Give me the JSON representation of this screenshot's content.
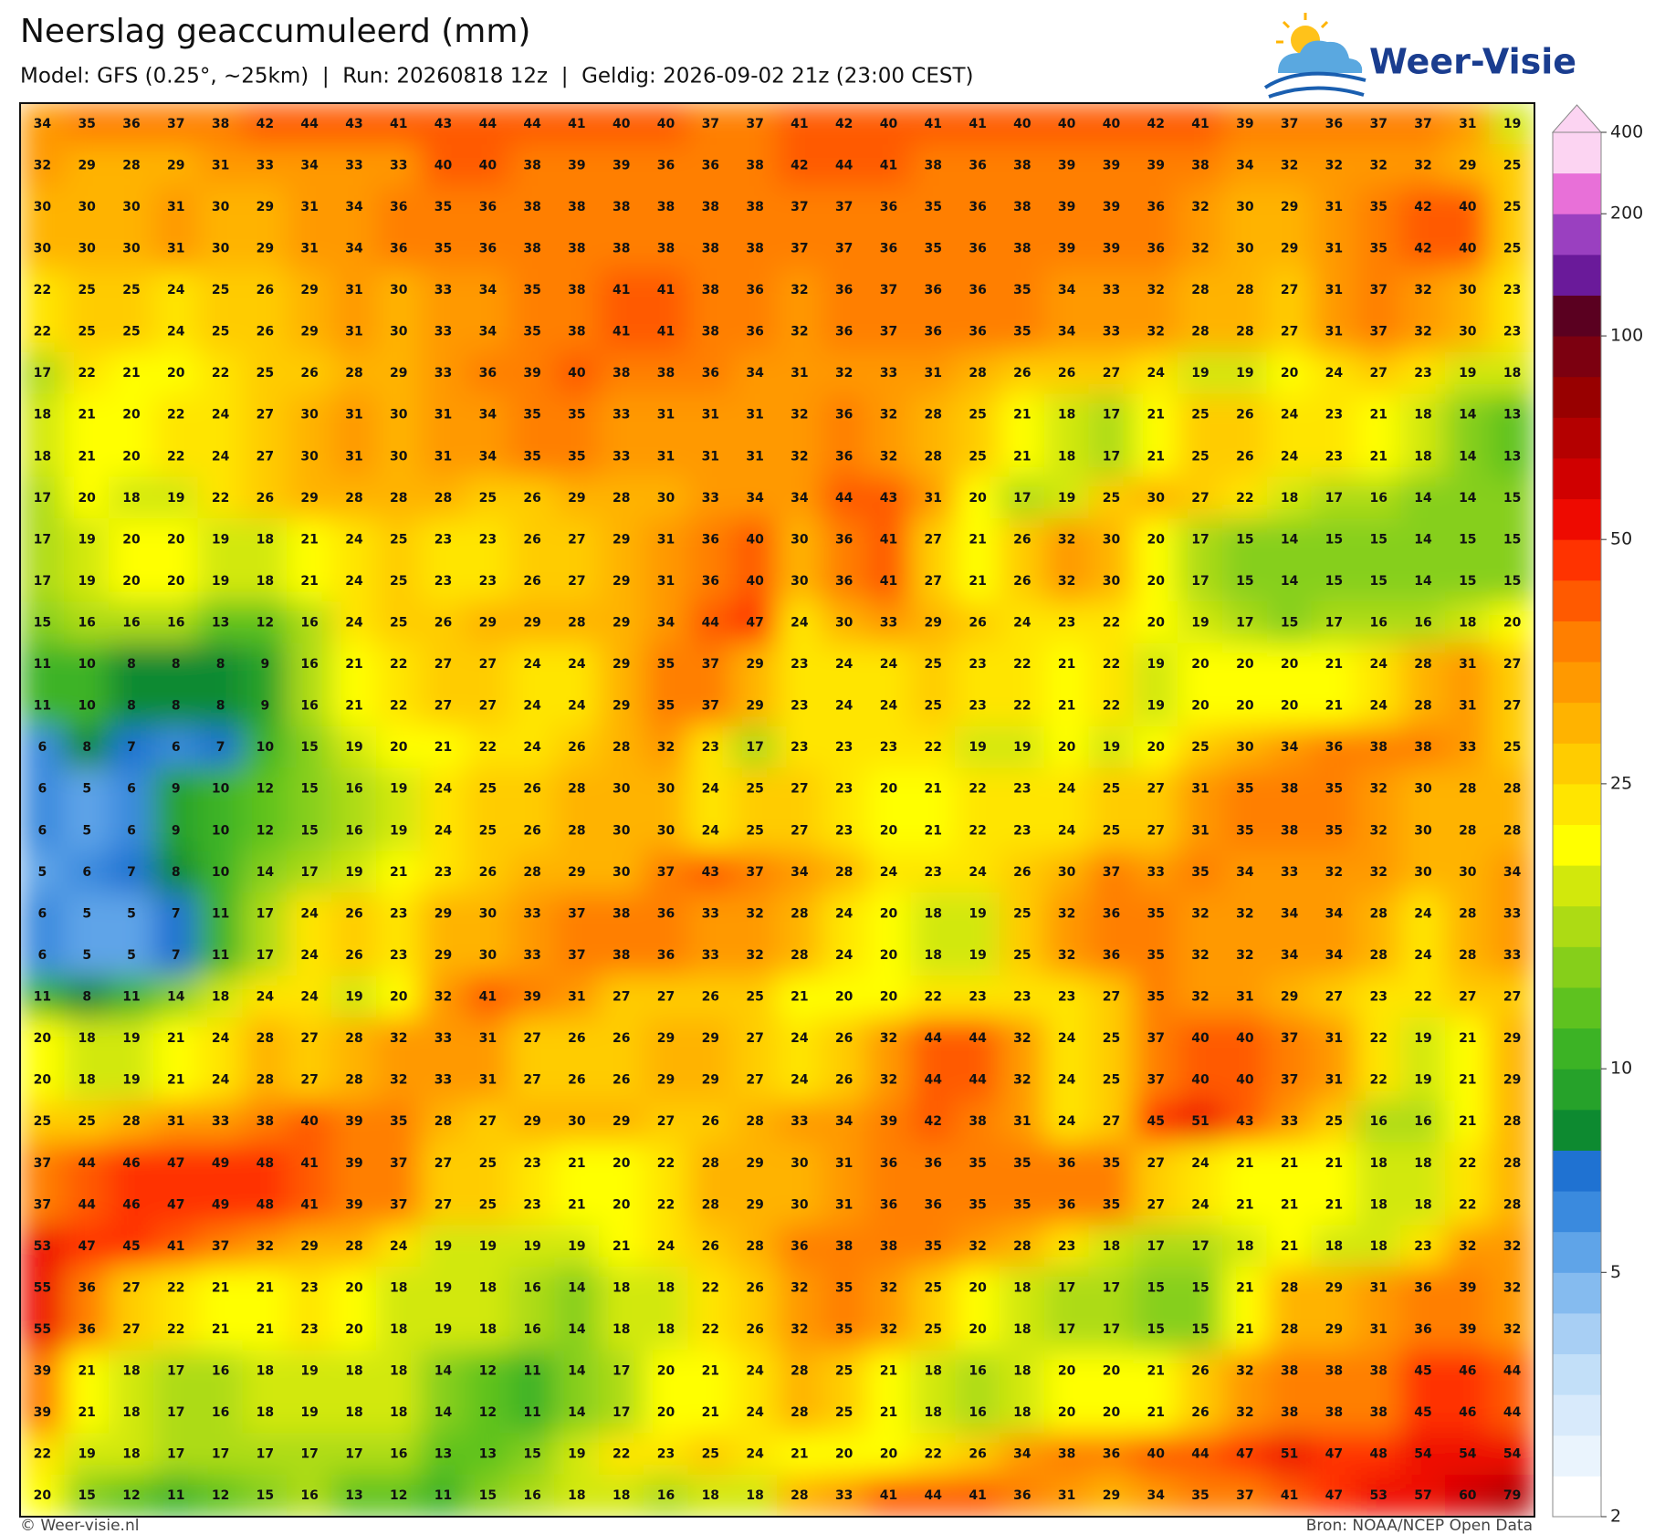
{
  "title": "Neerslag geaccumuleerd (mm)",
  "subtitle": "Model: GFS (0.25°, ~25km)  |  Run: 20260818 12z  |  Geldig: 2026-09-02 21z (23:00 CEST)",
  "logo_text": "Weer-Visie",
  "footer_left": "© Weer-visie.nl",
  "footer_right": "Bron: NOAA/NCEP Open Data",
  "chart_data": {
    "type": "heatmap",
    "grid": [
      [
        34,
        35,
        36,
        37,
        38,
        42,
        44,
        43,
        41,
        43,
        44,
        44,
        41,
        40,
        40,
        37,
        37,
        41,
        42,
        40,
        41,
        41,
        40,
        40,
        40,
        42,
        41,
        39,
        37,
        36,
        37,
        37,
        31,
        19
      ],
      [
        32,
        29,
        28,
        29,
        31,
        33,
        34,
        33,
        33,
        40,
        40,
        38,
        39,
        39,
        36,
        36,
        38,
        42,
        44,
        41,
        38,
        36,
        38,
        39,
        39,
        39,
        38,
        34,
        32,
        32,
        32,
        32,
        29,
        25
      ],
      [
        30,
        30,
        30,
        31,
        30,
        29,
        31,
        34,
        36,
        35,
        36,
        38,
        38,
        38,
        38,
        38,
        38,
        37,
        37,
        36,
        35,
        36,
        38,
        39,
        39,
        36,
        32,
        30,
        29,
        31,
        35,
        42,
        40,
        25
      ],
      [
        30,
        30,
        30,
        31,
        30,
        29,
        31,
        34,
        36,
        35,
        36,
        38,
        38,
        38,
        38,
        38,
        38,
        37,
        37,
        36,
        35,
        36,
        38,
        39,
        39,
        36,
        32,
        30,
        29,
        31,
        35,
        42,
        40,
        25
      ],
      [
        22,
        25,
        25,
        24,
        25,
        26,
        29,
        31,
        30,
        33,
        34,
        35,
        38,
        41,
        41,
        38,
        36,
        32,
        36,
        37,
        36,
        36,
        35,
        34,
        33,
        32,
        28,
        28,
        27,
        31,
        37,
        32,
        30,
        23
      ],
      [
        22,
        25,
        25,
        24,
        25,
        26,
        29,
        31,
        30,
        33,
        34,
        35,
        38,
        41,
        41,
        38,
        36,
        32,
        36,
        37,
        36,
        36,
        35,
        34,
        33,
        32,
        28,
        28,
        27,
        31,
        37,
        32,
        30,
        23
      ],
      [
        17,
        22,
        21,
        20,
        22,
        25,
        26,
        28,
        29,
        33,
        36,
        39,
        40,
        38,
        38,
        36,
        34,
        31,
        32,
        33,
        31,
        28,
        26,
        26,
        27,
        24,
        19,
        19,
        20,
        24,
        27,
        23,
        19,
        18
      ],
      [
        18,
        21,
        20,
        22,
        24,
        27,
        30,
        31,
        30,
        31,
        34,
        35,
        35,
        33,
        31,
        31,
        31,
        32,
        36,
        32,
        28,
        25,
        21,
        18,
        17,
        21,
        25,
        26,
        24,
        23,
        21,
        18,
        14,
        13
      ],
      [
        18,
        21,
        20,
        22,
        24,
        27,
        30,
        31,
        30,
        31,
        34,
        35,
        35,
        33,
        31,
        31,
        31,
        32,
        36,
        32,
        28,
        25,
        21,
        18,
        17,
        21,
        25,
        26,
        24,
        23,
        21,
        18,
        14,
        13
      ],
      [
        17,
        20,
        18,
        19,
        22,
        26,
        29,
        28,
        28,
        28,
        25,
        26,
        29,
        28,
        30,
        33,
        34,
        34,
        44,
        43,
        31,
        20,
        17,
        19,
        25,
        30,
        27,
        22,
        18,
        17,
        16,
        14,
        14,
        15
      ],
      [
        17,
        19,
        20,
        20,
        19,
        18,
        21,
        24,
        25,
        23,
        23,
        26,
        27,
        29,
        31,
        36,
        40,
        30,
        36,
        41,
        27,
        21,
        26,
        32,
        30,
        20,
        17,
        15,
        14,
        15,
        15,
        14,
        15,
        15
      ],
      [
        17,
        19,
        20,
        20,
        19,
        18,
        21,
        24,
        25,
        23,
        23,
        26,
        27,
        29,
        31,
        36,
        40,
        30,
        36,
        41,
        27,
        21,
        26,
        32,
        30,
        20,
        17,
        15,
        14,
        15,
        15,
        14,
        15,
        15
      ],
      [
        15,
        16,
        16,
        16,
        13,
        12,
        16,
        24,
        25,
        26,
        29,
        29,
        28,
        29,
        34,
        44,
        47,
        24,
        30,
        33,
        29,
        26,
        24,
        23,
        22,
        20,
        19,
        17,
        15,
        17,
        16,
        16,
        18,
        20
      ],
      [
        11,
        10,
        8,
        8,
        8,
        9,
        16,
        21,
        22,
        27,
        27,
        24,
        24,
        29,
        35,
        37,
        29,
        23,
        24,
        24,
        25,
        23,
        22,
        21,
        22,
        19,
        20,
        20,
        20,
        21,
        24,
        28,
        31,
        27
      ],
      [
        11,
        10,
        8,
        8,
        8,
        9,
        16,
        21,
        22,
        27,
        27,
        24,
        24,
        29,
        35,
        37,
        29,
        23,
        24,
        24,
        25,
        23,
        22,
        21,
        22,
        19,
        20,
        20,
        20,
        21,
        24,
        28,
        31,
        27
      ],
      [
        6,
        8,
        7,
        6,
        7,
        10,
        15,
        19,
        20,
        21,
        22,
        24,
        26,
        28,
        32,
        23,
        17,
        23,
        23,
        23,
        22,
        19,
        19,
        20,
        19,
        20,
        25,
        30,
        34,
        36,
        38,
        38,
        33,
        25
      ],
      [
        6,
        5,
        6,
        9,
        10,
        12,
        15,
        16,
        19,
        24,
        25,
        26,
        28,
        30,
        30,
        24,
        25,
        27,
        23,
        20,
        21,
        22,
        23,
        24,
        25,
        27,
        31,
        35,
        38,
        35,
        32,
        30,
        28,
        28
      ],
      [
        6,
        5,
        6,
        9,
        10,
        12,
        15,
        16,
        19,
        24,
        25,
        26,
        28,
        30,
        30,
        24,
        25,
        27,
        23,
        20,
        21,
        22,
        23,
        24,
        25,
        27,
        31,
        35,
        38,
        35,
        32,
        30,
        28,
        28
      ],
      [
        5,
        6,
        7,
        8,
        10,
        14,
        17,
        19,
        21,
        23,
        26,
        28,
        29,
        30,
        37,
        43,
        37,
        34,
        28,
        24,
        23,
        24,
        26,
        30,
        37,
        33,
        35,
        34,
        33,
        32,
        32,
        30,
        30,
        34
      ],
      [
        6,
        5,
        5,
        7,
        11,
        17,
        24,
        26,
        23,
        29,
        30,
        33,
        37,
        38,
        36,
        33,
        32,
        28,
        24,
        20,
        18,
        19,
        25,
        32,
        36,
        35,
        32,
        32,
        34,
        34,
        28,
        24,
        28,
        33
      ],
      [
        6,
        5,
        5,
        7,
        11,
        17,
        24,
        26,
        23,
        29,
        30,
        33,
        37,
        38,
        36,
        33,
        32,
        28,
        24,
        20,
        18,
        19,
        25,
        32,
        36,
        35,
        32,
        32,
        34,
        34,
        28,
        24,
        28,
        33
      ],
      [
        11,
        8,
        11,
        14,
        18,
        24,
        24,
        19,
        20,
        32,
        41,
        39,
        31,
        27,
        27,
        26,
        25,
        21,
        20,
        20,
        22,
        23,
        23,
        23,
        27,
        35,
        32,
        31,
        29,
        27,
        23,
        22,
        27,
        27
      ],
      [
        20,
        18,
        19,
        21,
        24,
        28,
        27,
        28,
        32,
        33,
        31,
        27,
        26,
        26,
        29,
        29,
        27,
        24,
        26,
        32,
        44,
        44,
        32,
        24,
        25,
        37,
        40,
        40,
        37,
        31,
        22,
        19,
        21,
        29
      ],
      [
        20,
        18,
        19,
        21,
        24,
        28,
        27,
        28,
        32,
        33,
        31,
        27,
        26,
        26,
        29,
        29,
        27,
        24,
        26,
        32,
        44,
        44,
        32,
        24,
        25,
        37,
        40,
        40,
        37,
        31,
        22,
        19,
        21,
        29
      ],
      [
        25,
        25,
        28,
        31,
        33,
        38,
        40,
        39,
        35,
        28,
        27,
        29,
        30,
        29,
        27,
        26,
        28,
        33,
        34,
        39,
        42,
        38,
        31,
        24,
        27,
        45,
        51,
        43,
        33,
        25,
        16,
        16,
        21,
        28
      ],
      [
        37,
        44,
        46,
        47,
        49,
        48,
        41,
        39,
        37,
        27,
        25,
        23,
        21,
        20,
        22,
        28,
        29,
        30,
        31,
        36,
        36,
        35,
        35,
        36,
        35,
        27,
        24,
        21,
        21,
        21,
        18,
        18,
        22,
        28
      ],
      [
        37,
        44,
        46,
        47,
        49,
        48,
        41,
        39,
        37,
        27,
        25,
        23,
        21,
        20,
        22,
        28,
        29,
        30,
        31,
        36,
        36,
        35,
        35,
        36,
        35,
        27,
        24,
        21,
        21,
        21,
        18,
        18,
        22,
        28
      ],
      [
        53,
        47,
        45,
        41,
        37,
        32,
        29,
        28,
        24,
        19,
        19,
        19,
        19,
        21,
        24,
        26,
        28,
        36,
        38,
        38,
        35,
        32,
        28,
        23,
        18,
        17,
        17,
        18,
        21,
        18,
        18,
        23,
        32,
        32
      ],
      [
        55,
        36,
        27,
        22,
        21,
        21,
        23,
        20,
        18,
        19,
        18,
        16,
        14,
        18,
        18,
        22,
        26,
        32,
        35,
        32,
        25,
        20,
        18,
        17,
        17,
        15,
        15,
        21,
        28,
        29,
        31,
        36,
        39,
        32
      ],
      [
        55,
        36,
        27,
        22,
        21,
        21,
        23,
        20,
        18,
        19,
        18,
        16,
        14,
        18,
        18,
        22,
        26,
        32,
        35,
        32,
        25,
        20,
        18,
        17,
        17,
        15,
        15,
        21,
        28,
        29,
        31,
        36,
        39,
        32
      ],
      [
        39,
        21,
        18,
        17,
        16,
        18,
        19,
        18,
        18,
        14,
        12,
        11,
        14,
        17,
        20,
        21,
        24,
        28,
        25,
        21,
        18,
        16,
        18,
        20,
        20,
        21,
        26,
        32,
        38,
        38,
        38,
        45,
        46,
        44
      ],
      [
        39,
        21,
        18,
        17,
        16,
        18,
        19,
        18,
        18,
        14,
        12,
        11,
        14,
        17,
        20,
        21,
        24,
        28,
        25,
        21,
        18,
        16,
        18,
        20,
        20,
        21,
        26,
        32,
        38,
        38,
        38,
        45,
        46,
        44
      ],
      [
        22,
        19,
        18,
        17,
        17,
        17,
        17,
        17,
        16,
        13,
        13,
        15,
        19,
        22,
        23,
        25,
        24,
        21,
        20,
        20,
        22,
        26,
        34,
        38,
        36,
        40,
        44,
        47,
        51,
        47,
        48,
        54,
        54,
        54
      ],
      [
        20,
        15,
        12,
        11,
        12,
        15,
        16,
        13,
        12,
        11,
        15,
        16,
        18,
        18,
        16,
        18,
        18,
        28,
        33,
        41,
        44,
        41,
        36,
        31,
        29,
        34,
        35,
        37,
        41,
        47,
        53,
        57,
        60,
        79
      ]
    ],
    "colorbar": {
      "levels": [
        2,
        2.5,
        3,
        3.5,
        4,
        4.5,
        5,
        6,
        7,
        8,
        9,
        10,
        12,
        14,
        16,
        18,
        20,
        22,
        25,
        28,
        31,
        35,
        40,
        45,
        50,
        60,
        70,
        80,
        90,
        100,
        125,
        150,
        200,
        300,
        400
      ],
      "colors": [
        "#ffffff",
        "#eaf4fd",
        "#d8eafb",
        "#c2dff8",
        "#a8cff4",
        "#85bbef",
        "#5fa4e8",
        "#3a8ade",
        "#1f72d2",
        "#0d8a30",
        "#26a22a",
        "#3cb325",
        "#5ec21f",
        "#86cf1a",
        "#addb14",
        "#d2e80c",
        "#ffff00",
        "#ffe500",
        "#ffcc00",
        "#ffb300",
        "#ff9900",
        "#ff7f00",
        "#ff5a00",
        "#ff3300",
        "#ee0a00",
        "#d00000",
        "#b40000",
        "#980000",
        "#7c0010",
        "#5a0020",
        "#6a1a9a",
        "#9a40c0",
        "#e870d8",
        "#fcd4f2"
      ],
      "ticks": [
        2,
        5,
        10,
        25,
        50,
        100,
        200,
        400
      ]
    }
  }
}
